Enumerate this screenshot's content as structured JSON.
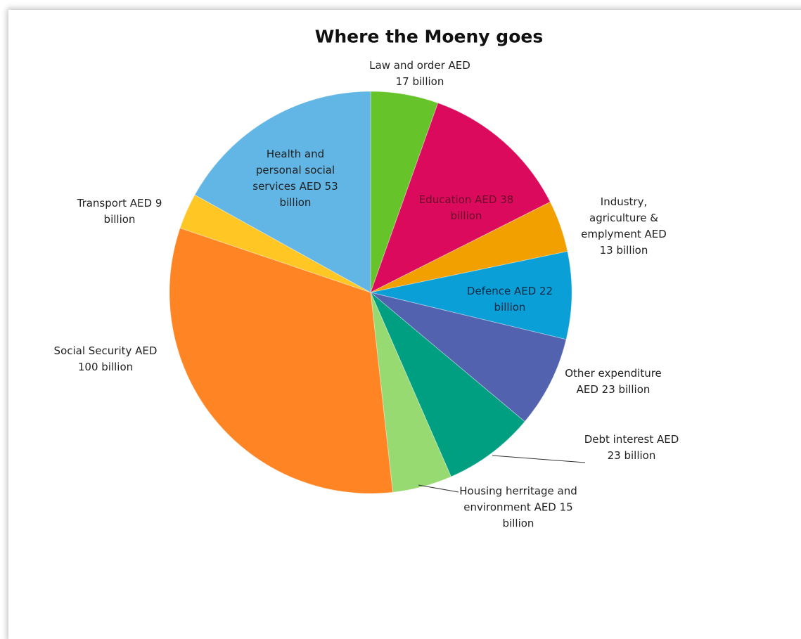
{
  "chart_data": {
    "type": "pie",
    "title": "Where the Moeny goes",
    "values": [
      17,
      38,
      13,
      22,
      23,
      23,
      15,
      100,
      9,
      53
    ],
    "value_labels": [
      "Law and order AED 17 billion",
      "Education AED 38 billion",
      "Industry, agriculture & emplyment AED 13 billion",
      "Defence AED 22 billion",
      "Other expenditure AED 23 billion",
      "Debt interest AED 23 billion",
      "Housing herritage and environment AED 15 billion",
      "Social Security AED 100 billion",
      "Transport AED 9 billion",
      "Health and personal social services AED 53 billion"
    ],
    "colors": [
      "#66c42a",
      "#dc0a5c",
      "#f2a000",
      "#0a9fd6",
      "#5262ae",
      "#009f82",
      "#98da72",
      "#ff8424",
      "#ffc624",
      "#62b6e6"
    ]
  }
}
